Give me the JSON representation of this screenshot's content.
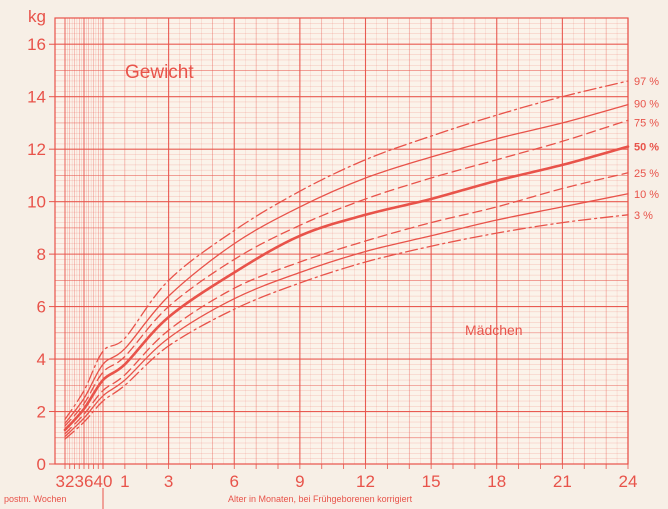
{
  "chart_data": {
    "type": "line",
    "title": "Gewicht",
    "subtitle": "Mädchen",
    "ylabel": "kg",
    "xlabel_weeks": "postm. Wochen",
    "xlabel_months": "Alter in Monaten, bei Frühgeborenen korrigiert",
    "ylim": [
      0,
      17
    ],
    "y_ticks": [
      "0",
      "2",
      "4",
      "6",
      "8",
      "10",
      "12",
      "14",
      "16"
    ],
    "week_ticks": [
      "32",
      "36",
      "40"
    ],
    "month_ticks": [
      "1",
      "3",
      "6",
      "9",
      "12",
      "15",
      "18",
      "21",
      "24"
    ],
    "grid": true,
    "x_unit_note": "x values: negative numbers are weeks before term (weeks - 40), positive numbers are months of corrected age",
    "series": [
      {
        "name": "3 %",
        "style": "dashdot",
        "bold": false,
        "x": [
          -8,
          -4,
          0,
          1,
          3,
          6,
          9,
          12,
          15,
          18,
          21,
          24
        ],
        "y": [
          0.95,
          1.6,
          2.4,
          3.0,
          4.5,
          5.9,
          6.9,
          7.7,
          8.3,
          8.8,
          9.2,
          9.5
        ]
      },
      {
        "name": "10 %",
        "style": "solid",
        "bold": false,
        "x": [
          -8,
          -4,
          0,
          1,
          3,
          6,
          9,
          12,
          15,
          18,
          21,
          24
        ],
        "y": [
          1.05,
          1.75,
          2.6,
          3.2,
          4.8,
          6.3,
          7.3,
          8.1,
          8.7,
          9.3,
          9.8,
          10.3
        ]
      },
      {
        "name": "25 %",
        "style": "dashed",
        "bold": false,
        "x": [
          -8,
          -4,
          0,
          1,
          3,
          6,
          9,
          12,
          15,
          18,
          21,
          24
        ],
        "y": [
          1.15,
          1.9,
          2.8,
          3.4,
          5.1,
          6.7,
          7.7,
          8.5,
          9.2,
          9.8,
          10.5,
          11.1
        ]
      },
      {
        "name": "50 %",
        "style": "solid",
        "bold": true,
        "x": [
          -8,
          -4,
          0,
          1,
          3,
          6,
          9,
          12,
          15,
          18,
          21,
          24
        ],
        "y": [
          1.3,
          2.1,
          3.2,
          3.8,
          5.6,
          7.3,
          8.7,
          9.5,
          10.1,
          10.8,
          11.4,
          12.1
        ]
      },
      {
        "name": "75 %",
        "style": "dashed",
        "bold": false,
        "x": [
          -8,
          -4,
          0,
          1,
          3,
          6,
          9,
          12,
          15,
          18,
          21,
          24
        ],
        "y": [
          1.45,
          2.3,
          3.5,
          4.1,
          6.0,
          7.8,
          9.1,
          10.1,
          10.9,
          11.6,
          12.3,
          13.1
        ]
      },
      {
        "name": "90 %",
        "style": "solid",
        "bold": false,
        "x": [
          -8,
          -4,
          0,
          1,
          3,
          6,
          9,
          12,
          15,
          18,
          21,
          24
        ],
        "y": [
          1.55,
          2.5,
          3.8,
          4.4,
          6.4,
          8.4,
          9.8,
          10.9,
          11.7,
          12.4,
          13.0,
          13.7
        ]
      },
      {
        "name": "97 %",
        "style": "dashdot",
        "bold": false,
        "x": [
          -8,
          -4,
          0,
          1,
          3,
          6,
          9,
          12,
          15,
          18,
          21,
          24
        ],
        "y": [
          1.7,
          2.8,
          4.3,
          4.8,
          7.0,
          8.9,
          10.4,
          11.6,
          12.5,
          13.3,
          14.0,
          14.6
        ]
      }
    ]
  }
}
